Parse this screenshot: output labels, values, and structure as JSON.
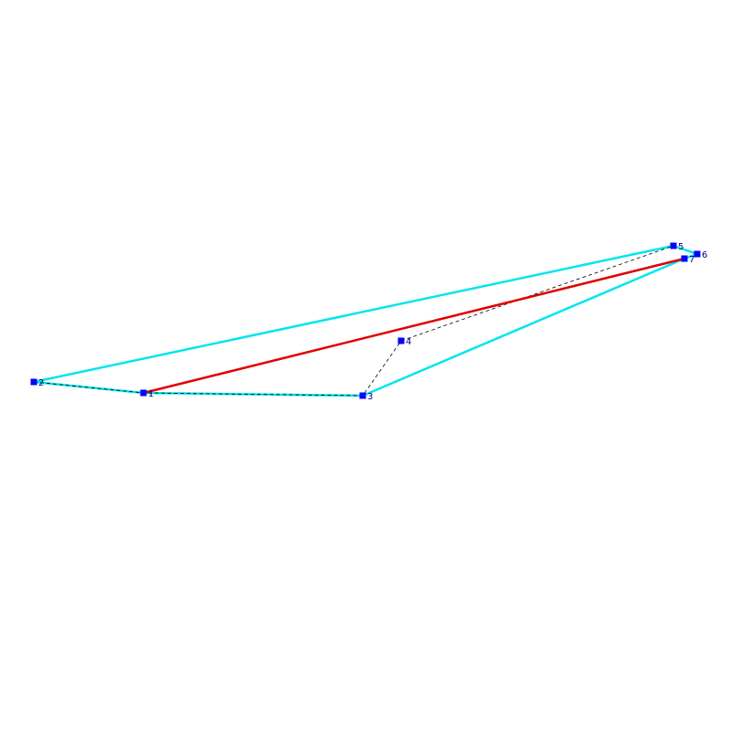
{
  "colors": {
    "hull": "#00e5f0",
    "path": "#e00000",
    "dashed": "#000000",
    "point": "#0000ff",
    "label": "#000080",
    "background": "#ffffff"
  },
  "points": [
    {
      "label": "1"
    },
    {
      "label": "2"
    },
    {
      "label": "3"
    },
    {
      "label": "4"
    },
    {
      "label": "5"
    },
    {
      "label": "6"
    },
    {
      "label": "7"
    }
  ],
  "hull_order": [
    "2",
    "1",
    "3",
    "7",
    "6",
    "5",
    "2"
  ],
  "dashed_order": [
    "2",
    "1",
    "3",
    "4",
    "5"
  ],
  "red_path": [
    "1",
    "7"
  ]
}
